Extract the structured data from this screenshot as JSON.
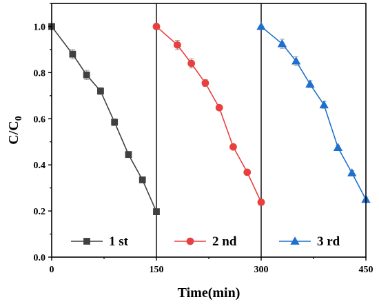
{
  "chart_data": {
    "type": "line",
    "xlabel": "Time(min)",
    "ylabel_main": "C/C",
    "ylabel_sub": "0",
    "xlim": [
      0,
      450
    ],
    "ylim": [
      0,
      1.1
    ],
    "xticks": [
      0,
      150,
      300,
      450
    ],
    "xtick_labels": [
      "0",
      "150",
      "300",
      "450"
    ],
    "yticks": [
      0.0,
      0.2,
      0.4,
      0.6,
      0.8,
      1.0
    ],
    "ytick_labels": [
      "0.0",
      "0.2",
      "0.4",
      "0.6",
      "0.8",
      "1.0"
    ],
    "vlines": [
      150,
      300
    ],
    "grid": false,
    "legend_position": "bottom",
    "series": [
      {
        "name": "1 st",
        "color": "#404040",
        "marker": "square",
        "x": [
          0,
          30,
          50,
          70,
          90,
          110,
          130,
          150
        ],
        "y": [
          1.0,
          0.88,
          0.79,
          0.72,
          0.585,
          0.445,
          0.335,
          0.197
        ],
        "err": [
          0.0,
          0.02,
          0.02,
          0.015,
          0.015,
          0.01,
          0.01,
          0.01
        ]
      },
      {
        "name": "2 nd",
        "color": "#e8403e",
        "marker": "circle",
        "x": [
          150,
          180,
          200,
          220,
          240,
          260,
          280,
          300
        ],
        "y": [
          1.0,
          0.92,
          0.84,
          0.755,
          0.648,
          0.478,
          0.368,
          0.238
        ],
        "err": [
          0.0,
          0.02,
          0.02,
          0.015,
          0.01,
          0.01,
          0.01,
          0.01
        ]
      },
      {
        "name": "3 rd",
        "color": "#1e6fce",
        "marker": "triangle",
        "x": [
          300,
          330,
          350,
          370,
          390,
          410,
          430,
          450
        ],
        "y": [
          1.0,
          0.925,
          0.85,
          0.75,
          0.66,
          0.475,
          0.365,
          0.25
        ],
        "err": [
          0.0,
          0.02,
          0.02,
          0.015,
          0.015,
          0.01,
          0.01,
          0.01
        ]
      }
    ]
  }
}
